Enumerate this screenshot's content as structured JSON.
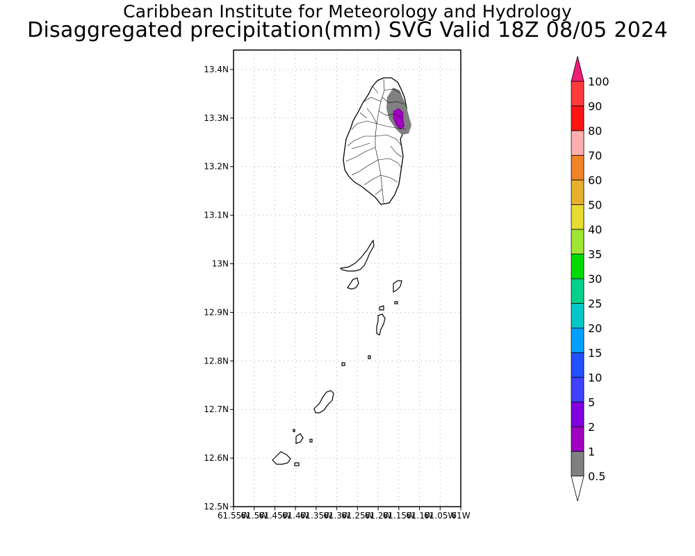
{
  "header": {
    "title_line1": "Caribbean Institute for Meteorology and Hydrology",
    "title_line2": "Disaggregated precipitation(mm) SVG Valid 18Z 08/05 2024"
  },
  "map": {
    "lon_range": [
      -61.55,
      -61.0
    ],
    "lat_range": [
      12.5,
      13.44
    ],
    "lat_ticks": [
      {
        "v": 13.4,
        "label": "13.4N"
      },
      {
        "v": 13.3,
        "label": "13.3N"
      },
      {
        "v": 13.2,
        "label": "13.2N"
      },
      {
        "v": 13.1,
        "label": "13.1N"
      },
      {
        "v": 13.0,
        "label": "13N"
      },
      {
        "v": 12.9,
        "label": "12.9N"
      },
      {
        "v": 12.8,
        "label": "12.8N"
      },
      {
        "v": 12.7,
        "label": "12.7N"
      },
      {
        "v": 12.6,
        "label": "12.6N"
      },
      {
        "v": 12.5,
        "label": "12.5N"
      }
    ],
    "lon_ticks": [
      {
        "v": -61.55,
        "label": "61.55W"
      },
      {
        "v": -61.5,
        "label": "61.5W"
      },
      {
        "v": -61.45,
        "label": "61.45W"
      },
      {
        "v": -61.4,
        "label": "61.4W"
      },
      {
        "v": -61.35,
        "label": "61.35W"
      },
      {
        "v": -61.3,
        "label": "61.3W"
      },
      {
        "v": -61.25,
        "label": "61.25W"
      },
      {
        "v": -61.2,
        "label": "61.2W"
      },
      {
        "v": -61.15,
        "label": "61.15W"
      },
      {
        "v": -61.1,
        "label": "61.1W"
      },
      {
        "v": -61.05,
        "label": "61.05W"
      },
      {
        "v": -61.0,
        "label": "61W"
      }
    ],
    "grid": "dotted",
    "precip_light_color": "#808080",
    "precip_heavy_color": "#a000c0"
  },
  "colorbar": {
    "labels": [
      "0.5",
      "1",
      "2",
      "5",
      "10",
      "15",
      "20",
      "25",
      "30",
      "35",
      "40",
      "50",
      "60",
      "70",
      "80",
      "90",
      "100"
    ],
    "colors": [
      "#808080",
      "#a000c0",
      "#8000e0",
      "#4040ff",
      "#2050ff",
      "#00a0ff",
      "#00c8c8",
      "#00d28c",
      "#00dc00",
      "#a0e632",
      "#e6dc32",
      "#e6af2d",
      "#f08228",
      "#ffafaf",
      "#ff1414",
      "#ff3c3c"
    ],
    "top_arrow_color": "#f01e78",
    "bottom_arrow_color": "#ffffff"
  }
}
